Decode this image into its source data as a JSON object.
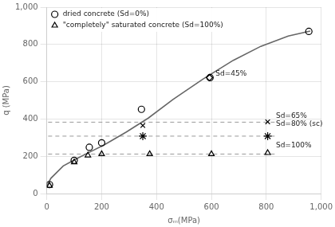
{
  "chart_data": {
    "type": "scatter",
    "xlabel": "σₘ(MPa)",
    "ylabel": "q (MPa)",
    "xlim": [
      0,
      1000
    ],
    "ylim": [
      0,
      1000
    ],
    "xticks": [
      0,
      200,
      400,
      600,
      800,
      1000
    ],
    "yticks": [
      0,
      200,
      400,
      600,
      800,
      1000
    ],
    "grid": true,
    "legend": "upper left",
    "series": [
      {
        "type": "line",
        "color": "#666666",
        "marker": "none",
        "x": [
          0,
          15,
          60,
          110,
          160,
          210,
          290,
          370,
          460,
          570,
          680,
          780,
          880,
          960
        ],
        "values": [
          42,
          82,
          148,
          188,
          225,
          262,
          330,
          405,
          505,
          615,
          715,
          790,
          845,
          872
        ]
      },
      {
        "type": "line",
        "line_style": "dashed",
        "color": "#999999",
        "marker": "none",
        "x": [
          5,
          840
        ],
        "values": [
          383,
          383
        ]
      },
      {
        "type": "line",
        "line_style": "dashed",
        "color": "#999999",
        "marker": "none",
        "x": [
          5,
          840
        ],
        "values": [
          308,
          308
        ]
      },
      {
        "type": "line",
        "line_style": "dashed",
        "color": "#999999",
        "marker": "none",
        "x": [
          5,
          840
        ],
        "values": [
          212,
          212
        ]
      },
      {
        "name": "dried concrete (Sd=0%)",
        "marker": "circle",
        "color": "#000000",
        "x": [
          10,
          100,
          155,
          200,
          345,
          595,
          955
        ],
        "values": [
          48,
          178,
          248,
          272,
          452,
          622,
          870
        ]
      },
      {
        "name": "\"completely\" saturated concrete (Sd=100%)",
        "marker": "triangle",
        "color": "#000000",
        "x": [
          10,
          100,
          150,
          200,
          375,
          600,
          805
        ],
        "values": [
          42,
          168,
          205,
          212,
          212,
          212,
          218
        ]
      },
      {
        "marker": "x",
        "color": "#000000",
        "x": [
          350,
          805
        ],
        "values": [
          365,
          385
        ]
      },
      {
        "marker": "star",
        "color": "#000000",
        "x": [
          350,
          805
        ],
        "values": [
          308,
          308
        ]
      },
      {
        "marker": "diamond",
        "color": "#000000",
        "x": [
          593
        ],
        "values": [
          622
        ]
      }
    ],
    "annotations": [
      {
        "text": "Sd=45%",
        "x": 615,
        "y": 622
      },
      {
        "text": "Sd=65%",
        "x": 835,
        "y": 395
      },
      {
        "text": "Sd=80% (sc)",
        "x": 835,
        "y": 352
      },
      {
        "text": "Sd=100%",
        "x": 835,
        "y": 240
      }
    ]
  }
}
